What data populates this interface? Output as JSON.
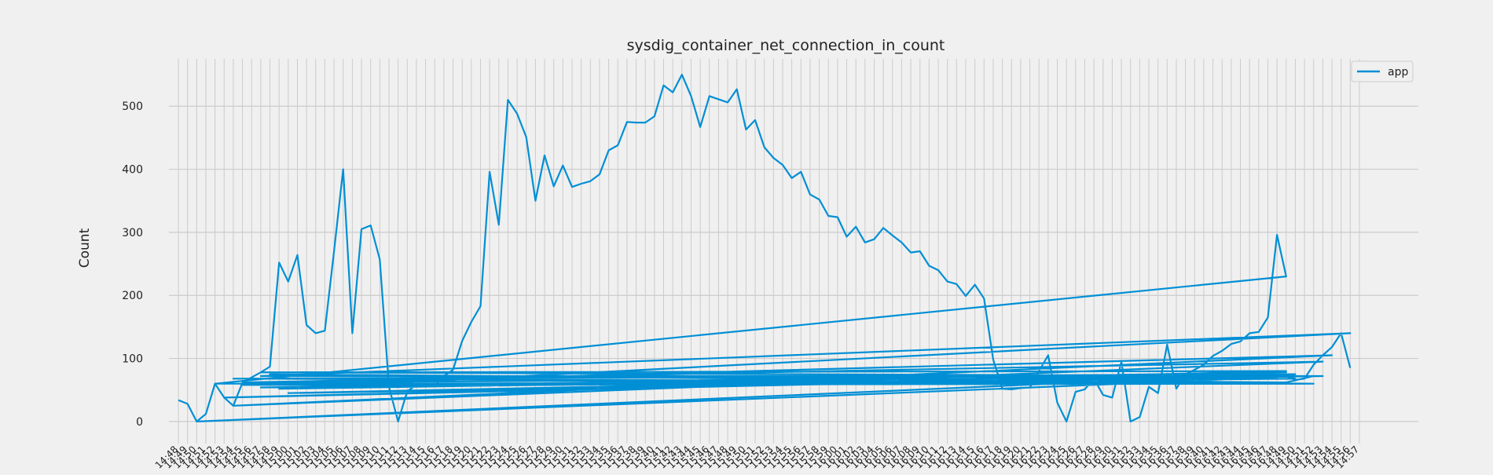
{
  "chart_data": {
    "type": "line",
    "title": "sysdig_container_net_connection_in_count",
    "xlabel": "",
    "ylabel": "Count",
    "ylim": [
      -35,
      575
    ],
    "yticks": [
      0,
      100,
      200,
      300,
      400,
      500
    ],
    "grid": true,
    "legend_position": "top-right",
    "line_color": "#008fd5",
    "x_ticks": [
      "14:48",
      "14:49",
      "14:50",
      "14:51",
      "14:52",
      "14:53",
      "14:54",
      "14:55",
      "14:56",
      "14:57",
      "14:58",
      "14:59",
      "15:00",
      "15:01",
      "15:02",
      "15:03",
      "15:04",
      "15:05",
      "15:06",
      "15:07",
      "15:08",
      "15:09",
      "15:10",
      "15:11",
      "15:12",
      "15:13",
      "15:14",
      "15:15",
      "15:16",
      "15:17",
      "15:18",
      "15:19",
      "15:20",
      "15:21",
      "15:22",
      "15:23",
      "15:24",
      "15:25",
      "15:26",
      "15:27",
      "15:28",
      "15:29",
      "15:30",
      "15:31",
      "15:32",
      "15:33",
      "15:34",
      "15:35",
      "15:36",
      "15:37",
      "15:38",
      "15:39",
      "15:40",
      "15:41",
      "15:42",
      "15:43",
      "15:44",
      "15:45",
      "15:46",
      "15:47",
      "15:48",
      "15:49",
      "15:50",
      "15:51",
      "15:52",
      "15:53",
      "15:54",
      "15:55",
      "15:56",
      "15:57",
      "15:58",
      "15:59",
      "16:00",
      "16:01",
      "16:02",
      "16:03",
      "16:04",
      "16:05",
      "16:06",
      "16:07",
      "16:08",
      "16:09",
      "16:10",
      "16:11",
      "16:12",
      "16:13",
      "16:14",
      "16:15",
      "16:16",
      "16:17",
      "16:18",
      "16:19",
      "16:20",
      "16:21",
      "16:22",
      "16:23",
      "16:24",
      "16:25",
      "16:26",
      "16:27",
      "16:28",
      "16:29",
      "16:30",
      "16:31",
      "16:32",
      "16:33",
      "16:34",
      "16:35",
      "16:36",
      "16:37",
      "16:38",
      "16:39",
      "16:40",
      "16:41",
      "16:42",
      "16:43",
      "16:44",
      "16:45",
      "16:46",
      "16:47",
      "16:48",
      "14:49",
      "14:50",
      "14:51",
      "14:52",
      "14:53",
      "14:54",
      "14:55",
      "14:56",
      "14:57"
    ],
    "series": [
      {
        "name": "app",
        "points": [
          [
            0,
            34
          ],
          [
            1,
            28
          ],
          [
            2,
            0
          ],
          [
            3,
            12
          ],
          [
            4,
            60
          ],
          [
            5,
            38
          ],
          [
            6,
            25
          ],
          [
            7,
            62
          ],
          [
            8,
            70
          ],
          [
            9,
            78
          ],
          [
            10,
            87
          ],
          [
            11,
            252
          ],
          [
            12,
            222
          ],
          [
            13,
            264
          ],
          [
            14,
            153
          ],
          [
            15,
            140
          ],
          [
            16,
            144
          ],
          [
            17,
            270
          ],
          [
            18,
            400
          ],
          [
            19,
            140
          ],
          [
            20,
            305
          ],
          [
            21,
            311
          ],
          [
            22,
            257
          ],
          [
            23,
            55
          ],
          [
            24,
            0
          ],
          [
            25,
            48
          ],
          [
            26,
            58
          ],
          [
            27,
            60
          ],
          [
            28,
            57
          ],
          [
            29,
            72
          ],
          [
            30,
            82
          ],
          [
            31,
            128
          ],
          [
            32,
            158
          ],
          [
            33,
            183
          ],
          [
            34,
            396
          ],
          [
            35,
            312
          ],
          [
            36,
            510
          ],
          [
            37,
            488
          ],
          [
            38,
            451
          ],
          [
            39,
            350
          ],
          [
            40,
            422
          ],
          [
            41,
            373
          ],
          [
            42,
            406
          ],
          [
            43,
            372
          ],
          [
            44,
            377
          ],
          [
            45,
            381
          ],
          [
            46,
            392
          ],
          [
            47,
            430
          ],
          [
            48,
            438
          ],
          [
            49,
            475
          ],
          [
            50,
            474
          ],
          [
            51,
            474
          ],
          [
            52,
            484
          ],
          [
            53,
            533
          ],
          [
            54,
            522
          ],
          [
            55,
            550
          ],
          [
            56,
            516
          ],
          [
            57,
            467
          ],
          [
            58,
            516
          ],
          [
            59,
            511
          ],
          [
            60,
            506
          ],
          [
            61,
            527
          ],
          [
            62,
            463
          ],
          [
            63,
            478
          ],
          [
            64,
            435
          ],
          [
            65,
            418
          ],
          [
            66,
            407
          ],
          [
            67,
            386
          ],
          [
            68,
            396
          ],
          [
            69,
            360
          ],
          [
            70,
            352
          ],
          [
            71,
            326
          ],
          [
            72,
            324
          ],
          [
            73,
            293
          ],
          [
            74,
            309
          ],
          [
            75,
            284
          ],
          [
            76,
            289
          ],
          [
            77,
            307
          ],
          [
            78,
            295
          ],
          [
            79,
            284
          ],
          [
            80,
            268
          ],
          [
            81,
            270
          ],
          [
            82,
            247
          ],
          [
            83,
            240
          ],
          [
            84,
            222
          ],
          [
            85,
            218
          ],
          [
            86,
            199
          ],
          [
            87,
            217
          ],
          [
            88,
            195
          ],
          [
            89,
            98
          ],
          [
            90,
            52
          ],
          [
            91,
            51
          ],
          [
            92,
            53
          ],
          [
            93,
            54
          ],
          [
            94,
            80
          ],
          [
            95,
            105
          ],
          [
            96,
            30
          ],
          [
            97,
            0
          ],
          [
            98,
            47
          ],
          [
            99,
            51
          ],
          [
            100,
            68
          ],
          [
            101,
            42
          ],
          [
            102,
            38
          ],
          [
            103,
            95
          ],
          [
            104,
            0
          ],
          [
            105,
            7
          ],
          [
            106,
            55
          ],
          [
            107,
            45
          ],
          [
            108,
            122
          ],
          [
            109,
            52
          ],
          [
            110,
            75
          ],
          [
            111,
            82
          ],
          [
            112,
            90
          ],
          [
            113,
            104
          ],
          [
            114,
            112
          ],
          [
            115,
            123
          ],
          [
            116,
            127
          ],
          [
            117,
            140
          ],
          [
            118,
            142
          ],
          [
            119,
            165
          ],
          [
            120,
            296
          ],
          [
            121,
            230
          ],
          [
            4,
            60
          ],
          [
            121,
            62
          ],
          [
            124,
            72
          ],
          [
            9,
            78
          ],
          [
            121,
            80
          ],
          [
            5,
            38
          ],
          [
            119,
            75
          ],
          [
            2,
            0
          ],
          [
            120,
            70
          ],
          [
            7,
            62
          ],
          [
            125,
            95
          ],
          [
            6,
            25
          ],
          [
            126,
            105
          ],
          [
            7,
            58
          ],
          [
            124,
            60
          ],
          [
            10,
            75
          ],
          [
            121,
            62
          ],
          [
            8,
            68
          ],
          [
            125,
            72
          ],
          [
            9,
            72
          ],
          [
            128,
            140
          ],
          [
            11,
            52
          ],
          [
            122,
            75
          ],
          [
            6,
            68
          ],
          [
            125,
            72
          ],
          [
            12,
            45
          ],
          [
            121,
            78
          ],
          [
            9,
            54
          ],
          [
            122,
            68
          ],
          [
            121,
            72
          ],
          [
            122,
            66
          ],
          [
            123,
            68
          ],
          [
            124,
            90
          ],
          [
            125,
            105
          ],
          [
            126,
            118
          ],
          [
            127,
            140
          ],
          [
            128,
            85
          ]
        ]
      }
    ]
  }
}
